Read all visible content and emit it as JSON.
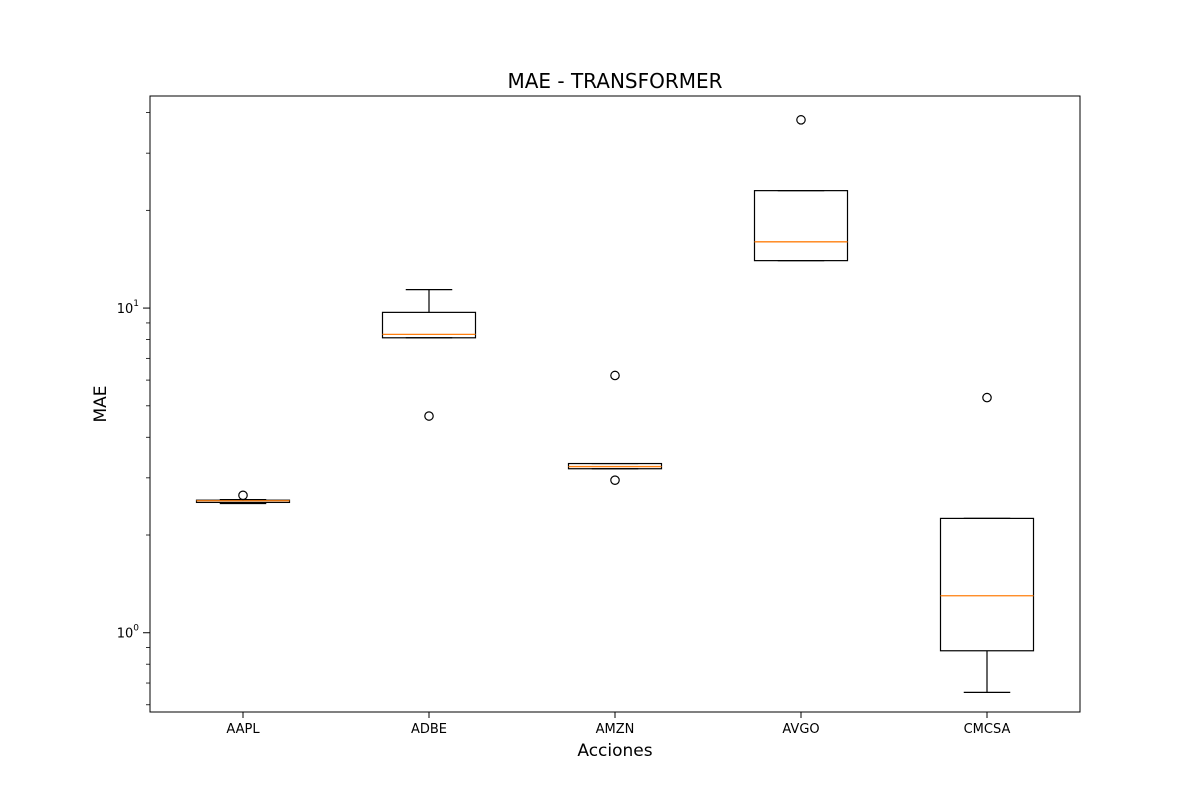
{
  "chart_data": {
    "type": "boxplot",
    "title": "MAE - TRANSFORMER",
    "xlabel": "Acciones",
    "ylabel": "MAE",
    "yscale": "log",
    "ylim": [
      0.57,
      45
    ],
    "grid": false,
    "legend": "none",
    "yticks": [
      {
        "base": "10",
        "exp": "0",
        "value": 1
      },
      {
        "base": "10",
        "exp": "1",
        "value": 10
      }
    ],
    "colors": {
      "box": "#000000",
      "median": "#ff7f0e",
      "flier": "#000000"
    },
    "categories": [
      "AAPL",
      "ADBE",
      "AMZN",
      "AVGO",
      "CMCSA"
    ],
    "boxes": [
      {
        "label": "AAPL",
        "whislo": 2.5,
        "q1": 2.52,
        "med": 2.55,
        "q3": 2.56,
        "whishi": 2.57,
        "fliers": [
          2.65
        ]
      },
      {
        "label": "ADBE",
        "whislo": 8.1,
        "q1": 8.1,
        "med": 8.3,
        "q3": 9.7,
        "whishi": 11.4,
        "fliers": [
          4.65
        ]
      },
      {
        "label": "AMZN",
        "whislo": 3.2,
        "q1": 3.2,
        "med": 3.25,
        "q3": 3.32,
        "whishi": 3.32,
        "fliers": [
          6.2,
          2.95
        ]
      },
      {
        "label": "AVGO",
        "whislo": 14.0,
        "q1": 14.0,
        "med": 16.0,
        "q3": 23.0,
        "whishi": 23.0,
        "fliers": [
          38.0
        ]
      },
      {
        "label": "CMCSA",
        "whislo": 0.655,
        "q1": 0.88,
        "med": 1.3,
        "q3": 2.25,
        "whishi": 2.25,
        "fliers": [
          5.3
        ]
      }
    ]
  }
}
